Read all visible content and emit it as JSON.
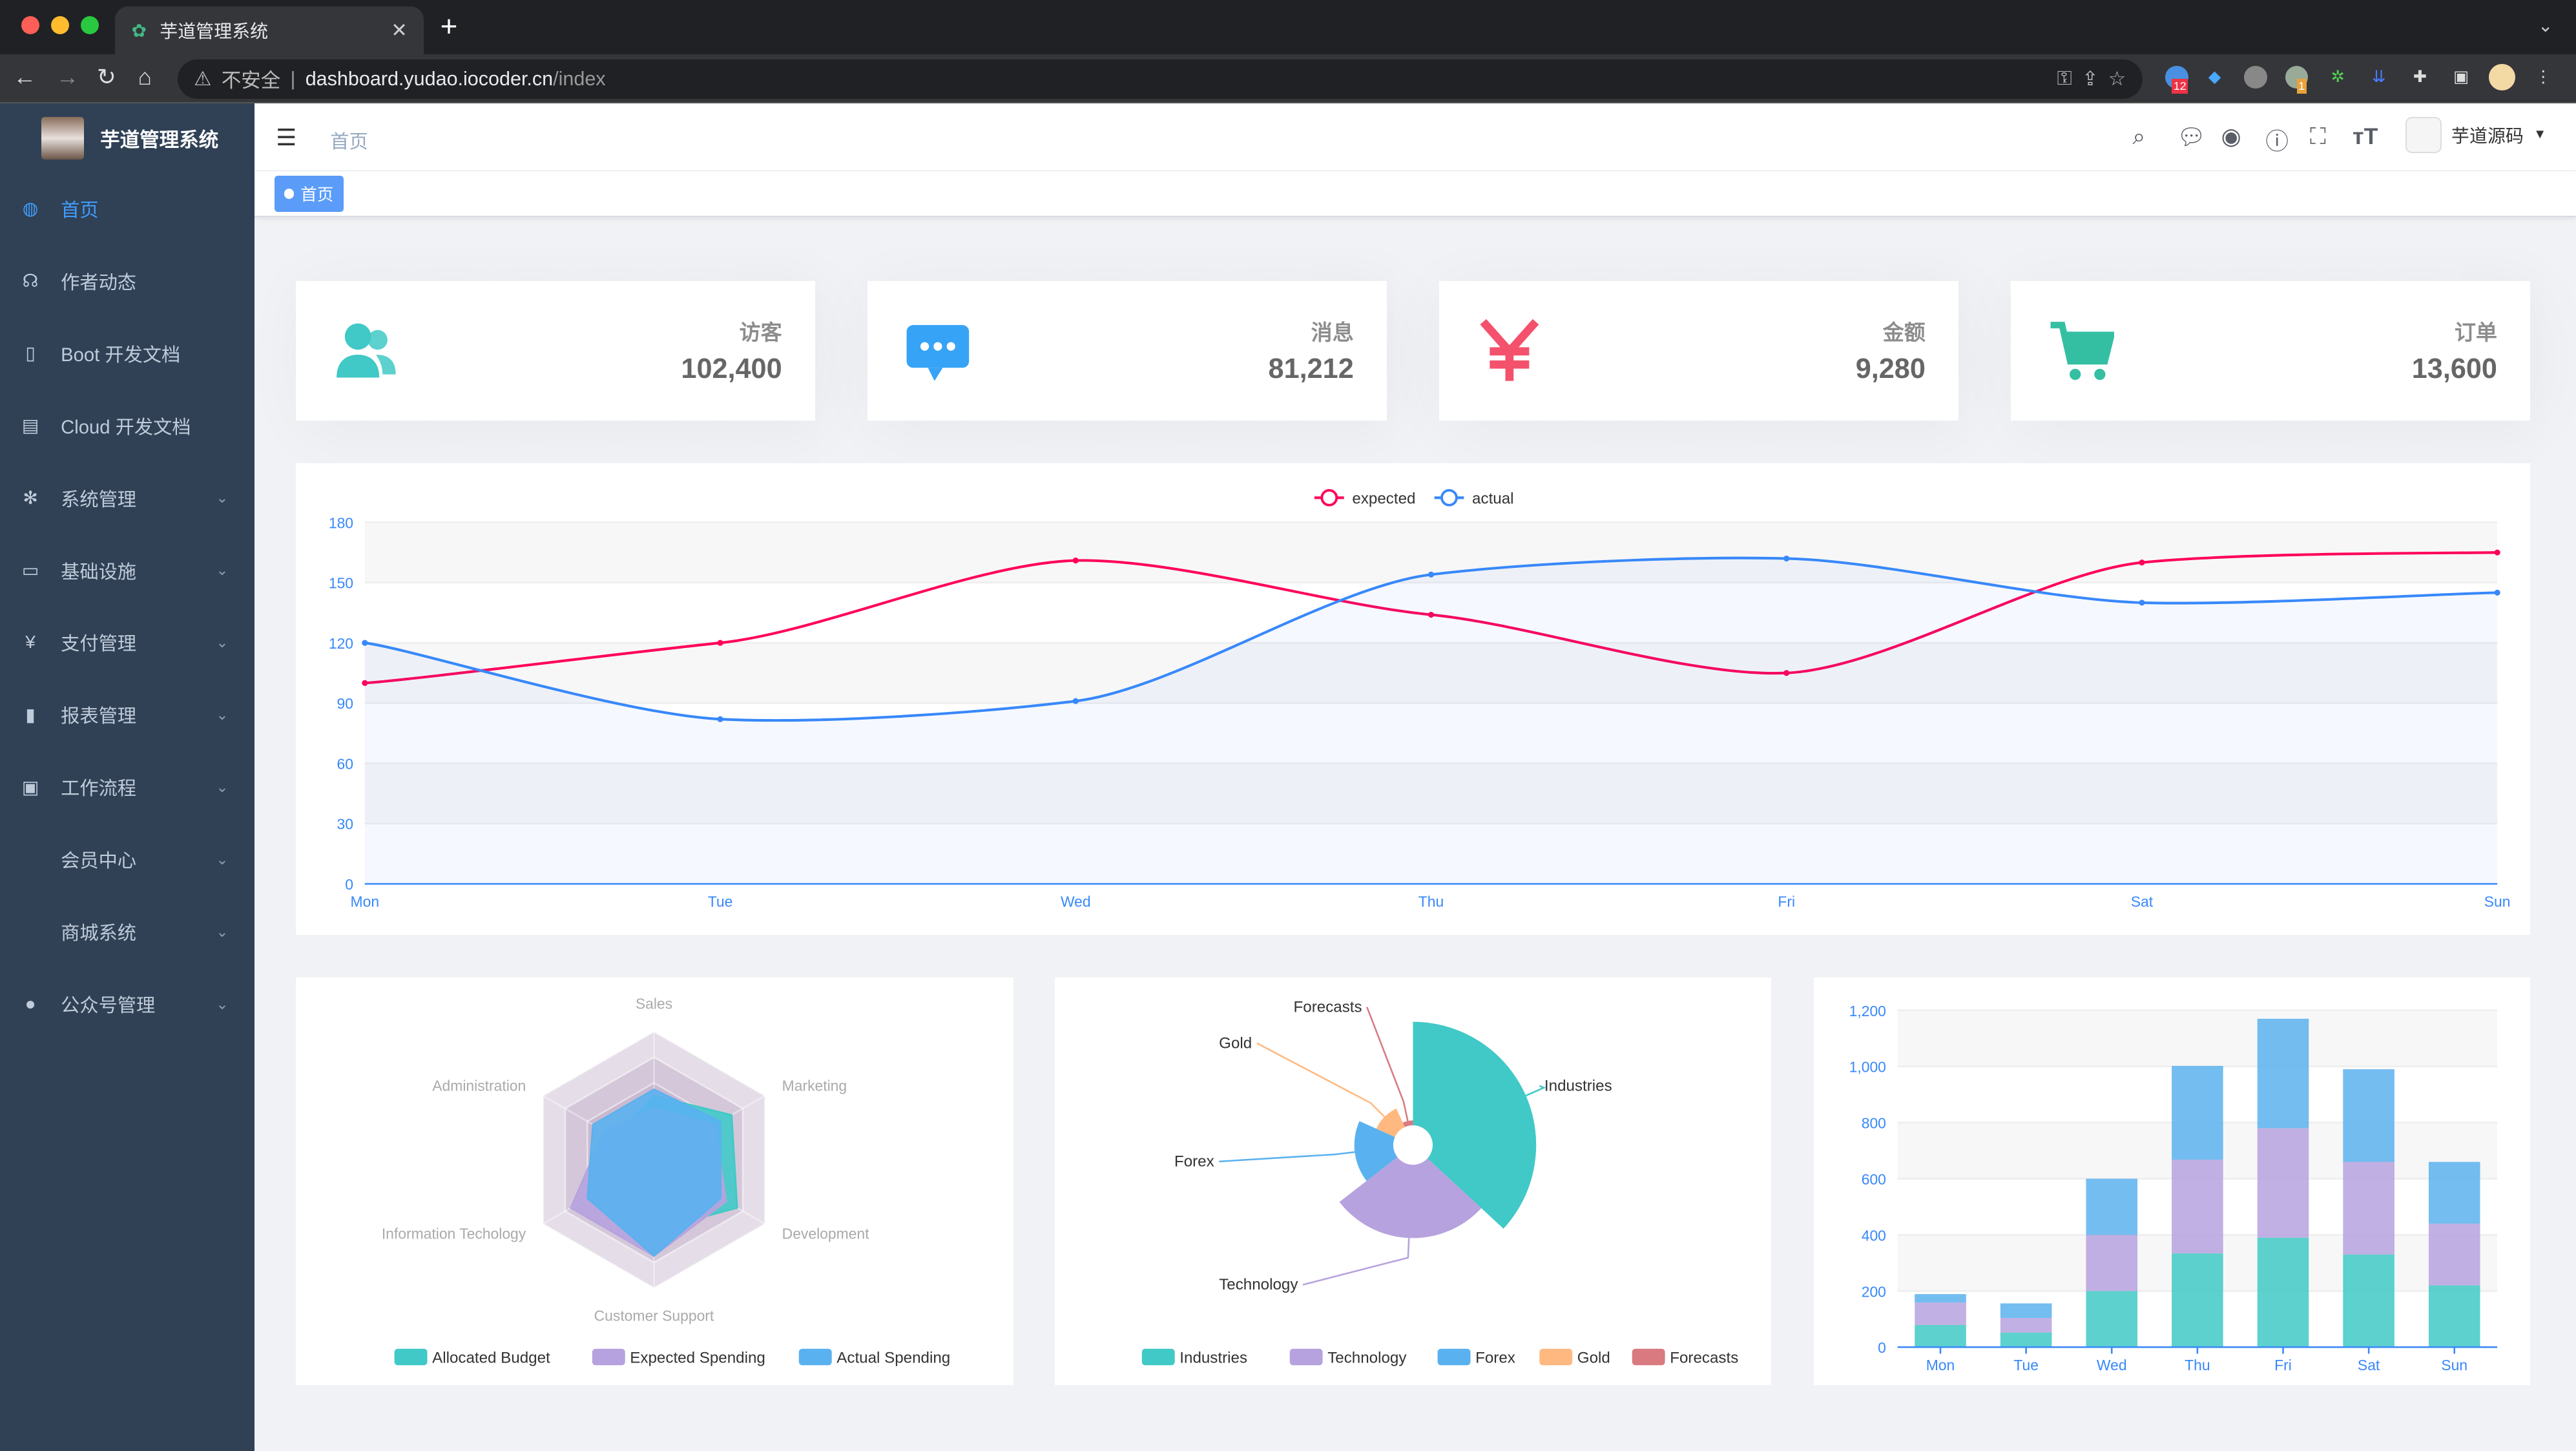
{
  "browser": {
    "tab_title": "芋道管理系统",
    "security_label": "不安全",
    "url_host": "dashboard.yudao.iocoder.cn",
    "url_path": "/index",
    "ext_badges": [
      "12",
      "1"
    ]
  },
  "sidebar": {
    "logo_title": "芋道管理系统",
    "items": [
      {
        "label": "首页",
        "icon": "dashboard-icon",
        "active": true,
        "expandable": false
      },
      {
        "label": "作者动态",
        "icon": "headset-icon",
        "expandable": false
      },
      {
        "label": "Boot 开发文档",
        "icon": "book-icon",
        "expandable": false
      },
      {
        "label": "Cloud 开发文档",
        "icon": "document-icon",
        "expandable": false
      },
      {
        "label": "系统管理",
        "icon": "gear-icon",
        "expandable": true
      },
      {
        "label": "基础设施",
        "icon": "monitor-icon",
        "expandable": true
      },
      {
        "label": "支付管理",
        "icon": "yen-icon",
        "expandable": true
      },
      {
        "label": "报表管理",
        "icon": "bar-chart-icon",
        "expandable": true
      },
      {
        "label": "工作流程",
        "icon": "briefcase-icon",
        "expandable": true
      },
      {
        "label": "会员中心",
        "icon": "",
        "expandable": true
      },
      {
        "label": "商城系统",
        "icon": "",
        "expandable": true
      },
      {
        "label": "公众号管理",
        "icon": "wechat-icon",
        "expandable": true
      }
    ]
  },
  "navbar": {
    "breadcrumb": "首页",
    "user_name": "芋道源码"
  },
  "tags": {
    "active": "首页"
  },
  "cards": [
    {
      "label": "访客",
      "value": "102,400",
      "icon": "peoples-icon",
      "color": "#40c9c6"
    },
    {
      "label": "消息",
      "value": "81,212",
      "icon": "message-icon",
      "color": "#36a3f7"
    },
    {
      "label": "金额",
      "value": "9,280",
      "icon": "money-icon",
      "color": "#f4516c"
    },
    {
      "label": "订单",
      "value": "13,600",
      "icon": "shopping-cart-icon",
      "color": "#34bfa3"
    }
  ],
  "chart_data": [
    {
      "type": "line",
      "categories": [
        "Mon",
        "Tue",
        "Wed",
        "Thu",
        "Fri",
        "Sat",
        "Sun"
      ],
      "ylim": [
        0,
        180
      ],
      "yticks": [
        "0",
        "30",
        "60",
        "90",
        "120",
        "150",
        "180"
      ],
      "legend_position": "top",
      "series": [
        {
          "name": "expected",
          "values": [
            100,
            120,
            161,
            134,
            105,
            160,
            165
          ],
          "color": "#FF005A"
        },
        {
          "name": "actual",
          "values": [
            120,
            82,
            91,
            154,
            162,
            140,
            145
          ],
          "color": "#3888fa",
          "area": true
        }
      ]
    },
    {
      "type": "radar",
      "indicators": [
        {
          "name": "Sales",
          "max": 10000
        },
        {
          "name": "Administration",
          "max": 20000
        },
        {
          "name": "Information Techology",
          "max": 20000
        },
        {
          "name": "Customer Support",
          "max": 20000
        },
        {
          "name": "Development",
          "max": 20000
        },
        {
          "name": "Marketing",
          "max": 20000
        }
      ],
      "legend_position": "bottom",
      "series": [
        {
          "name": "Allocated Budget",
          "values": [
            5000,
            7000,
            12000,
            11000,
            15000,
            14000
          ],
          "color": "#40c9c6"
        },
        {
          "name": "Expected Spending",
          "values": [
            4000,
            9000,
            15000,
            15000,
            13000,
            11000
          ],
          "color": "#b6a2de"
        },
        {
          "name": "Actual Spending",
          "values": [
            5500,
            11000,
            12000,
            15000,
            12000,
            12000
          ],
          "color": "#5ab1ef"
        }
      ]
    },
    {
      "type": "pie",
      "rose": true,
      "legend_position": "bottom",
      "slices": [
        {
          "name": "Industries",
          "value": 320,
          "color": "#40c9c6"
        },
        {
          "name": "Technology",
          "value": 240,
          "color": "#b6a2de"
        },
        {
          "name": "Forex",
          "value": 149,
          "color": "#5ab1ef"
        },
        {
          "name": "Gold",
          "value": 100,
          "color": "#ffb980"
        },
        {
          "name": "Forecasts",
          "value": 59,
          "color": "#d87a80"
        }
      ]
    },
    {
      "type": "bar",
      "stacked": true,
      "categories": [
        "Mon",
        "Tue",
        "Wed",
        "Thu",
        "Fri",
        "Sat",
        "Sun"
      ],
      "ylim": [
        0,
        1200
      ],
      "yticks": [
        "0",
        "200",
        "400",
        "600",
        "800",
        "1,000",
        "1,200"
      ],
      "series": [
        {
          "values": [
            79,
            52,
            200,
            334,
            390,
            330,
            220
          ],
          "color": "#40c9c6"
        },
        {
          "values": [
            80,
            52,
            200,
            334,
            390,
            330,
            220
          ],
          "color": "#b6a2de"
        },
        {
          "values": [
            30,
            52,
            200,
            334,
            390,
            330,
            220
          ],
          "color": "#5ab1ef"
        }
      ]
    }
  ]
}
